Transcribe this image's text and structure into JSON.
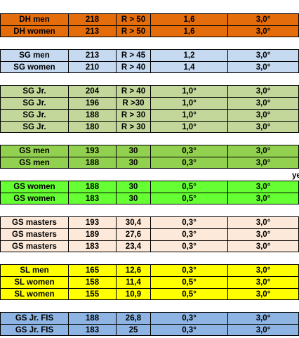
{
  "colors": {
    "dh": "#e46c0a",
    "sg": "#c5d9f1",
    "sgjr": "#c4d79b",
    "gs": "#92d050",
    "gsw": "#66ff33",
    "masters": "#fde9d9",
    "sl": "#ffff00",
    "gsjr": "#8db4e2"
  },
  "stray_text": "ye",
  "groups": [
    {
      "color": "dh",
      "rows": [
        [
          "DH men",
          "218",
          "R > 50",
          "1,6",
          "3,0°"
        ],
        [
          "DH women",
          "213",
          "R > 50",
          "1,6",
          "3,0°"
        ]
      ]
    },
    {
      "color": "sg",
      "rows": [
        [
          "SG men",
          "213",
          "R > 45",
          "1,2",
          "3,0°"
        ],
        [
          "SG women",
          "210",
          "R > 40",
          "1,4",
          "3,0°"
        ]
      ]
    },
    {
      "color": "sgjr",
      "rows": [
        [
          "SG Jr.",
          "204",
          "R > 40",
          "1,0°",
          "3,0°"
        ],
        [
          "SG Jr.",
          "196",
          "R >30",
          "1,0°",
          "3,0°"
        ],
        [
          "SG Jr.",
          "188",
          "R > 30",
          "1,0°",
          "3,0°"
        ],
        [
          "SG Jr.",
          "180",
          "R > 30",
          "1,0°",
          "3,0°"
        ]
      ]
    },
    {
      "color": "gs",
      "rows": [
        [
          "GS men",
          "193",
          "30",
          "0,3°",
          "3,0°"
        ],
        [
          "GS men",
          "188",
          "30",
          "0,3°",
          "3,0°"
        ]
      ]
    },
    {
      "color": "gsw",
      "rows": [
        [
          "GS women",
          "188",
          "30",
          "0,5°",
          "3,0°"
        ],
        [
          "GS women",
          "183",
          "30",
          "0,5°",
          "3,0°"
        ]
      ]
    },
    {
      "color": "masters",
      "rows": [
        [
          "GS masters",
          "193",
          "30,4",
          "0,3°",
          "3,0°"
        ],
        [
          "GS masters",
          "189",
          "27,6",
          "0,3°",
          "3,0°"
        ],
        [
          "GS masters",
          "183",
          "23,4",
          "0,3°",
          "3,0°"
        ]
      ]
    },
    {
      "color": "sl",
      "rows": [
        [
          "SL men",
          "165",
          "12,6",
          "0,3°",
          "3,0°"
        ],
        [
          "SL women",
          "158",
          "11,4",
          "0,5°",
          "3,0°"
        ],
        [
          "SL women",
          "155",
          "10,9",
          "0,5°",
          "3,0°"
        ]
      ]
    },
    {
      "color": "gsjr",
      "rows": [
        [
          "GS Jr. FIS",
          "188",
          "26,8",
          "0,3°",
          "3,0°"
        ],
        [
          "GS Jr. FIS",
          "183",
          "25",
          "0,3°",
          "3,0°"
        ]
      ]
    }
  ]
}
